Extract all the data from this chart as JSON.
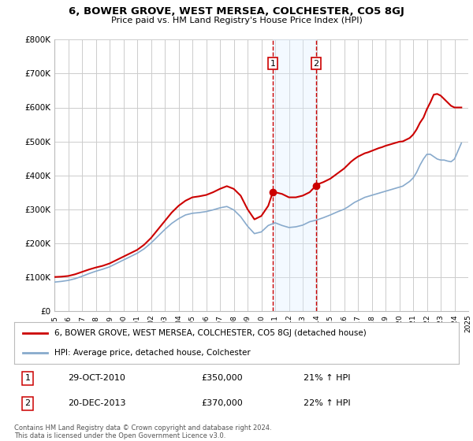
{
  "title": "6, BOWER GROVE, WEST MERSEA, COLCHESTER, CO5 8GJ",
  "subtitle": "Price paid vs. HM Land Registry's House Price Index (HPI)",
  "ylim": [
    0,
    800000
  ],
  "yticks": [
    0,
    100000,
    200000,
    300000,
    400000,
    500000,
    600000,
    700000,
    800000
  ],
  "ytick_labels": [
    "£0",
    "£100K",
    "£200K",
    "£300K",
    "£400K",
    "£500K",
    "£600K",
    "£700K",
    "£800K"
  ],
  "background_color": "#ffffff",
  "grid_color": "#cccccc",
  "legend_label_red": "6, BOWER GROVE, WEST MERSEA, COLCHESTER, CO5 8GJ (detached house)",
  "legend_label_blue": "HPI: Average price, detached house, Colchester",
  "annotation1_date": "29-OCT-2010",
  "annotation1_price": "£350,000",
  "annotation1_hpi": "21% ↑ HPI",
  "annotation2_date": "20-DEC-2013",
  "annotation2_price": "£370,000",
  "annotation2_hpi": "22% ↑ HPI",
  "copyright_text": "Contains HM Land Registry data © Crown copyright and database right 2024.\nThis data is licensed under the Open Government Licence v3.0.",
  "red_color": "#cc0000",
  "blue_color": "#88aacc",
  "vline_color": "#cc0000",
  "span_color": "#ddeeff",
  "point1_x": 2010.83,
  "point1_y": 350000,
  "point2_x": 2013.97,
  "point2_y": 370000,
  "xmin": 1995,
  "xmax": 2025,
  "years_red": [
    1995,
    1995.5,
    1996,
    1996.5,
    1997,
    1997.5,
    1998,
    1998.5,
    1999,
    1999.5,
    2000,
    2000.5,
    2001,
    2001.5,
    2002,
    2002.5,
    2003,
    2003.5,
    2004,
    2004.5,
    2005,
    2005.5,
    2006,
    2006.5,
    2007,
    2007.5,
    2008,
    2008.5,
    2009,
    2009.5,
    2010,
    2010.5,
    2010.83,
    2011,
    2011.5,
    2012,
    2012.5,
    2013,
    2013.5,
    2013.97,
    2014,
    2014.5,
    2015,
    2015.5,
    2016,
    2016.25,
    2016.5,
    2016.75,
    2017,
    2017.25,
    2017.5,
    2017.75,
    2018,
    2018.25,
    2018.5,
    2018.75,
    2019,
    2019.25,
    2019.5,
    2019.75,
    2020,
    2020.25,
    2020.5,
    2020.75,
    2021,
    2021.25,
    2021.5,
    2021.75,
    2022,
    2022.25,
    2022.5,
    2022.75,
    2023,
    2023.25,
    2023.5,
    2023.75,
    2024,
    2024.5
  ],
  "values_red": [
    100000,
    101000,
    103000,
    108000,
    115000,
    122000,
    128000,
    133000,
    140000,
    150000,
    160000,
    170000,
    180000,
    195000,
    215000,
    240000,
    265000,
    290000,
    310000,
    325000,
    335000,
    338000,
    342000,
    350000,
    360000,
    368000,
    360000,
    340000,
    300000,
    270000,
    280000,
    310000,
    350000,
    350000,
    345000,
    335000,
    335000,
    340000,
    350000,
    370000,
    372000,
    380000,
    390000,
    405000,
    420000,
    430000,
    440000,
    448000,
    455000,
    460000,
    465000,
    468000,
    472000,
    476000,
    480000,
    483000,
    487000,
    490000,
    493000,
    496000,
    499000,
    500000,
    505000,
    510000,
    520000,
    535000,
    555000,
    570000,
    595000,
    615000,
    638000,
    640000,
    635000,
    625000,
    615000,
    605000,
    600000,
    600000
  ],
  "years_blue": [
    1995,
    1995.5,
    1996,
    1996.5,
    1997,
    1997.5,
    1998,
    1998.5,
    1999,
    1999.5,
    2000,
    2000.5,
    2001,
    2001.5,
    2002,
    2002.5,
    2003,
    2003.5,
    2004,
    2004.5,
    2005,
    2005.5,
    2006,
    2006.5,
    2007,
    2007.5,
    2008,
    2008.5,
    2009,
    2009.5,
    2010,
    2010.5,
    2011,
    2011.5,
    2012,
    2012.5,
    2013,
    2013.5,
    2014,
    2014.5,
    2015,
    2015.5,
    2016,
    2016.25,
    2016.5,
    2016.75,
    2017,
    2017.25,
    2017.5,
    2017.75,
    2018,
    2018.25,
    2018.5,
    2018.75,
    2019,
    2019.25,
    2019.5,
    2019.75,
    2020,
    2020.25,
    2020.5,
    2020.75,
    2021,
    2021.25,
    2021.5,
    2021.75,
    2022,
    2022.25,
    2022.5,
    2022.75,
    2023,
    2023.25,
    2023.5,
    2023.75,
    2024,
    2024.5
  ],
  "values_blue": [
    85000,
    87000,
    90000,
    95000,
    102000,
    110000,
    117000,
    123000,
    130000,
    140000,
    150000,
    160000,
    170000,
    183000,
    200000,
    220000,
    240000,
    258000,
    272000,
    283000,
    288000,
    290000,
    293000,
    298000,
    304000,
    308000,
    298000,
    278000,
    250000,
    228000,
    233000,
    252000,
    260000,
    252000,
    246000,
    248000,
    253000,
    263000,
    268000,
    275000,
    283000,
    292000,
    300000,
    306000,
    313000,
    320000,
    325000,
    330000,
    335000,
    338000,
    341000,
    344000,
    347000,
    350000,
    353000,
    356000,
    359000,
    362000,
    365000,
    368000,
    375000,
    382000,
    392000,
    408000,
    430000,
    448000,
    462000,
    462000,
    455000,
    448000,
    445000,
    445000,
    442000,
    440000,
    448000,
    495000
  ]
}
